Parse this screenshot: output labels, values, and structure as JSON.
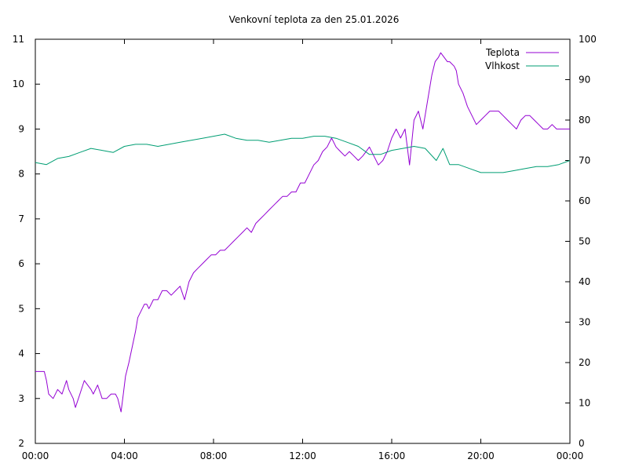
{
  "chart_data": {
    "type": "line",
    "title": "Venkovní teplota za den 25.01.2026",
    "xlabel": "",
    "ylabel": "",
    "y2label": "",
    "grid": false,
    "legend_position": "top-right",
    "x_ticks": [
      "00:00",
      "04:00",
      "08:00",
      "12:00",
      "16:00",
      "20:00",
      "00:00"
    ],
    "x_range_hours": [
      0,
      24
    ],
    "y_left": {
      "min": 2,
      "max": 11,
      "ticks": [
        2,
        3,
        4,
        5,
        6,
        7,
        8,
        9,
        10,
        11
      ]
    },
    "y_right": {
      "min": 0,
      "max": 100,
      "ticks": [
        0,
        10,
        20,
        30,
        40,
        50,
        60,
        70,
        80,
        90,
        100
      ]
    },
    "series": [
      {
        "name": "Teplota",
        "axis": "left",
        "color": "#9400d3",
        "x": [
          0,
          0.4,
          0.5,
          0.6,
          0.8,
          1.0,
          1.2,
          1.4,
          1.5,
          1.7,
          1.8,
          2.0,
          2.2,
          2.5,
          2.6,
          2.8,
          3.0,
          3.2,
          3.4,
          3.6,
          3.7,
          3.85,
          3.95,
          4.05,
          4.2,
          4.5,
          4.6,
          4.8,
          4.9,
          5.0,
          5.1,
          5.2,
          5.3,
          5.5,
          5.7,
          5.9,
          6.1,
          6.3,
          6.5,
          6.7,
          6.9,
          7.1,
          7.3,
          7.5,
          7.7,
          7.9,
          8.1,
          8.3,
          8.5,
          8.7,
          8.9,
          9.1,
          9.3,
          9.5,
          9.7,
          9.9,
          10.1,
          10.3,
          10.5,
          10.7,
          10.9,
          11.1,
          11.3,
          11.5,
          11.7,
          11.9,
          12.1,
          12.3,
          12.5,
          12.7,
          12.9,
          13.1,
          13.3,
          13.5,
          13.7,
          13.9,
          14.1,
          14.3,
          14.5,
          14.7,
          14.85,
          15.0,
          15.2,
          15.4,
          15.6,
          15.8,
          16.0,
          16.2,
          16.4,
          16.6,
          16.8,
          17.0,
          17.2,
          17.4,
          17.6,
          17.8,
          17.95,
          18.1,
          18.2,
          18.35,
          18.5,
          18.6,
          18.8,
          18.9,
          19.0,
          19.2,
          19.4,
          19.6,
          19.8,
          20.0,
          20.2,
          20.4,
          20.6,
          20.8,
          21.0,
          21.2,
          21.4,
          21.6,
          21.8,
          22.0,
          22.2,
          22.4,
          22.6,
          22.8,
          23.0,
          23.2,
          23.4,
          23.6,
          23.8,
          24.0
        ],
        "values": [
          3.6,
          3.6,
          3.4,
          3.1,
          3.0,
          3.2,
          3.1,
          3.4,
          3.2,
          3.0,
          2.8,
          3.1,
          3.4,
          3.2,
          3.1,
          3.3,
          3.0,
          3.0,
          3.1,
          3.1,
          3.0,
          2.7,
          3.1,
          3.5,
          3.8,
          4.5,
          4.8,
          5.0,
          5.1,
          5.1,
          5.0,
          5.1,
          5.2,
          5.2,
          5.4,
          5.4,
          5.3,
          5.4,
          5.5,
          5.2,
          5.6,
          5.8,
          5.9,
          6.0,
          6.1,
          6.2,
          6.2,
          6.3,
          6.3,
          6.4,
          6.5,
          6.6,
          6.7,
          6.8,
          6.7,
          6.9,
          7.0,
          7.1,
          7.2,
          7.3,
          7.4,
          7.5,
          7.5,
          7.6,
          7.6,
          7.8,
          7.8,
          8.0,
          8.2,
          8.3,
          8.5,
          8.6,
          8.8,
          8.6,
          8.5,
          8.4,
          8.5,
          8.4,
          8.3,
          8.4,
          8.5,
          8.6,
          8.4,
          8.2,
          8.3,
          8.5,
          8.8,
          9.0,
          8.8,
          9.0,
          8.2,
          9.2,
          9.4,
          9.0,
          9.6,
          10.2,
          10.5,
          10.6,
          10.7,
          10.6,
          10.5,
          10.5,
          10.4,
          10.3,
          10.0,
          9.8,
          9.5,
          9.3,
          9.1,
          9.2,
          9.3,
          9.4,
          9.4,
          9.4,
          9.3,
          9.2,
          9.1,
          9.0,
          9.2,
          9.3,
          9.3,
          9.2,
          9.1,
          9.0,
          9.0,
          9.1,
          9.0,
          9.0,
          9.0,
          9.0
        ],
        "values_note": ""
      },
      {
        "name": "Vlhkost",
        "axis": "right",
        "color": "#009e73",
        "x": [
          0,
          0.5,
          1.0,
          1.5,
          2.0,
          2.5,
          3.0,
          3.5,
          4.0,
          4.5,
          5.0,
          5.5,
          6.0,
          6.5,
          7.0,
          7.5,
          8.0,
          8.5,
          9.0,
          9.5,
          10.0,
          10.5,
          11.0,
          11.5,
          12.0,
          12.5,
          13.0,
          13.5,
          14.0,
          14.5,
          15.0,
          15.5,
          16.0,
          16.5,
          17.0,
          17.5,
          18.0,
          18.3,
          18.6,
          19.0,
          19.5,
          20.0,
          20.5,
          21.0,
          21.5,
          22.0,
          22.5,
          23.0,
          23.5,
          24.0
        ],
        "values": [
          69.5,
          69,
          70.5,
          71,
          72,
          73,
          72.5,
          72,
          73.5,
          74,
          74,
          73.5,
          74,
          74.5,
          75,
          75.5,
          76,
          76.5,
          75.5,
          75,
          75,
          74.5,
          75,
          75.5,
          75.5,
          76,
          76,
          75.5,
          74.5,
          73.5,
          71.5,
          71.5,
          72.5,
          73,
          73.5,
          73,
          70,
          73,
          69,
          69,
          68,
          67,
          67,
          67,
          67.5,
          68,
          68.5,
          68.5,
          69,
          70
        ]
      }
    ]
  }
}
